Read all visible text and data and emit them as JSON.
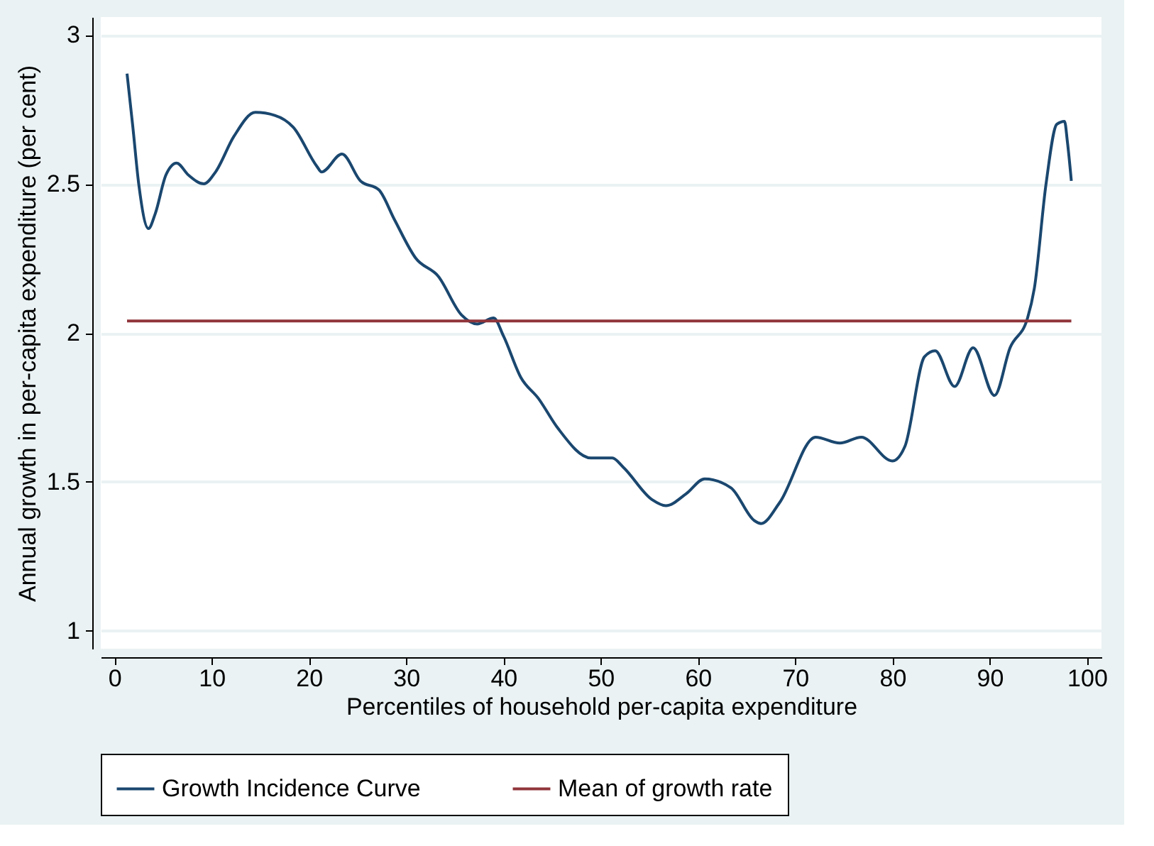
{
  "chart_data": {
    "type": "line",
    "xlabel": "Percentiles of household per-capita expenditure",
    "ylabel": "Annual growth in per-capita expenditure (per cent)",
    "xlim": [
      -1.4,
      101.5
    ],
    "xticks": [
      0,
      10,
      20,
      30,
      40,
      50,
      60,
      70,
      80,
      90,
      100
    ],
    "ylim": [
      0.94,
      3.06
    ],
    "yticks": [
      1,
      1.5,
      2,
      2.5,
      3
    ],
    "grid": "y",
    "legend": "bottom",
    "line_style": "solid",
    "marker": "none",
    "series": [
      {
        "name": "Growth Incidence Curve",
        "color": "#1a476f",
        "x": [
          1.3,
          1.9,
          2.5,
          3.5,
          4.2,
          5.3,
          6.4,
          7.6,
          9.2,
          10.4,
          12.3,
          14.5,
          16.5,
          18.4,
          20.8,
          21.3,
          23.4,
          25.3,
          27.2,
          28.8,
          31,
          33.3,
          35.7,
          37.3,
          39,
          40,
          41.8,
          43.6,
          45.6,
          49,
          51.2,
          52.3,
          55.3,
          56.7,
          58.8,
          60.7,
          63.4,
          65.8,
          66.5,
          68.4,
          72.1,
          74.6,
          76.8,
          80,
          81.3,
          83.3,
          84.4,
          86.4,
          88.3,
          90.5,
          92.1,
          93.9,
          94.6,
          95.8,
          96.9,
          97.7,
          98.0,
          98.4
        ],
        "values": [
          2.87,
          2.69,
          2.5,
          2.35,
          2.4,
          2.53,
          2.57,
          2.53,
          2.5,
          2.54,
          2.66,
          2.74,
          2.73,
          2.69,
          2.56,
          2.54,
          2.6,
          2.51,
          2.48,
          2.38,
          2.25,
          2.19,
          2.06,
          2.03,
          2.05,
          1.99,
          1.85,
          1.78,
          1.68,
          1.58,
          1.58,
          1.55,
          1.44,
          1.42,
          1.46,
          1.51,
          1.48,
          1.37,
          1.36,
          1.43,
          1.65,
          1.63,
          1.65,
          1.57,
          1.62,
          1.92,
          1.94,
          1.82,
          1.95,
          1.79,
          1.95,
          2.05,
          2.15,
          2.5,
          2.7,
          2.71,
          2.64,
          2.51
        ]
      },
      {
        "name": "Mean of growth rate",
        "color": "#90353b",
        "x": [
          1.3,
          98.4
        ],
        "values": [
          2.04,
          2.04
        ]
      }
    ]
  }
}
